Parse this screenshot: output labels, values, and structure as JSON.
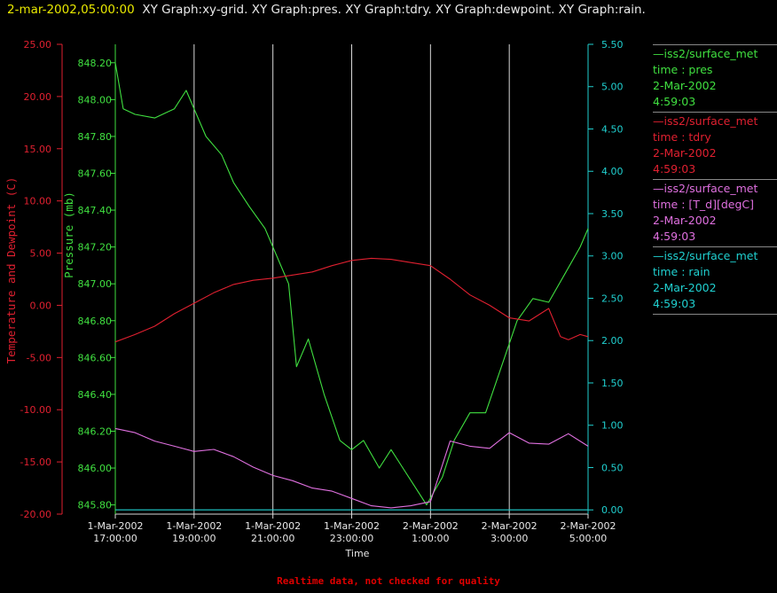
{
  "header": {
    "timestamp": "2-mar-2002,05:00:00",
    "title": "XY Graph:xy-grid.  XY Graph:pres.  XY Graph:tdry.  XY Graph:dewpoint.  XY Graph:rain."
  },
  "footer": {
    "note": "Realtime data, not checked for quality"
  },
  "legend": [
    {
      "lines": [
        "—iss2/surface_met",
        "time : pres",
        "2-Mar-2002",
        "4:59:03"
      ],
      "color": "#40e040"
    },
    {
      "lines": [
        "—iss2/surface_met",
        "time : tdry",
        "2-Mar-2002",
        "4:59:03"
      ],
      "color": "#e02030"
    },
    {
      "lines": [
        "—iss2/surface_met",
        "time : [T_d][degC]",
        "2-Mar-2002",
        "4:59:03"
      ],
      "color": "#e070e0"
    },
    {
      "lines": [
        "—iss2/surface_met",
        "time : rain",
        "2-Mar-2002",
        "4:59:03"
      ],
      "color": "#20d0d0"
    }
  ],
  "chart_data": {
    "type": "line",
    "xlabel": "Time",
    "x_ticks": [
      [
        "1-Mar-2002",
        "17:00:00"
      ],
      [
        "1-Mar-2002",
        "19:00:00"
      ],
      [
        "1-Mar-2002",
        "21:00:00"
      ],
      [
        "1-Mar-2002",
        "23:00:00"
      ],
      [
        "2-Mar-2002",
        "1:00:00"
      ],
      [
        "2-Mar-2002",
        "3:00:00"
      ],
      [
        "2-Mar-2002",
        "5:00:00"
      ]
    ],
    "x_range_hours": [
      0,
      12
    ],
    "vertical_grid": true,
    "left_axis": {
      "label": "Temperature and Dewpoint (C)",
      "range": [
        -20,
        25
      ],
      "ticks": [
        "25.00",
        "20.00",
        "15.00",
        "10.00",
        "5.00",
        "0.00",
        "-5.00",
        "-10.00",
        "-15.00",
        "-20.00"
      ],
      "color": "#e02030"
    },
    "pressure_axis": {
      "label": "Pressure (mb)",
      "range": [
        845.75,
        848.3
      ],
      "ticks": [
        "848.20",
        "848.00",
        "847.80",
        "847.60",
        "847.40",
        "847.20",
        "847.00",
        "846.80",
        "846.60",
        "846.40",
        "846.20",
        "846.00",
        "845.80"
      ],
      "color": "#40e040"
    },
    "right_axis": {
      "range": [
        -0.05,
        5.5
      ],
      "ticks": [
        "5.50",
        "5.00",
        "4.50",
        "4.00",
        "3.50",
        "3.00",
        "2.50",
        "2.00",
        "1.50",
        "1.00",
        "0.50",
        "0.00"
      ],
      "color": "#20d0d0"
    },
    "series": [
      {
        "name": "time : pres",
        "axis": "pressure",
        "color": "#40e040",
        "x": [
          0,
          0.2,
          0.5,
          1,
          1.5,
          1.8,
          2.0,
          2.3,
          2.7,
          3.0,
          3.4,
          3.8,
          4.1,
          4.4,
          4.6,
          4.9,
          5.3,
          5.7,
          6.0,
          6.3,
          6.7,
          7.0,
          7.3,
          7.6,
          7.9,
          8.3,
          8.6,
          9.0,
          9.4,
          9.8,
          10.2,
          10.6,
          11.0,
          11.4,
          11.8,
          12.0
        ],
        "y": [
          848.2,
          847.95,
          847.92,
          847.9,
          847.95,
          848.05,
          847.95,
          847.8,
          847.7,
          847.55,
          847.42,
          847.3,
          847.15,
          847.0,
          846.55,
          846.7,
          846.4,
          846.15,
          846.1,
          846.15,
          846.0,
          846.1,
          846.0,
          845.9,
          845.8,
          845.95,
          846.15,
          846.3,
          846.3,
          846.55,
          846.8,
          846.92,
          846.9,
          847.05,
          847.2,
          847.3
        ]
      },
      {
        "name": "time : tdry",
        "axis": "left",
        "color": "#e02030",
        "x": [
          0,
          0.5,
          1,
          1.5,
          2,
          2.5,
          3,
          3.5,
          4,
          4.5,
          5,
          5.5,
          6,
          6.5,
          7,
          7.5,
          8,
          8.5,
          9,
          9.5,
          10,
          10.5,
          11,
          11.3,
          11.5,
          11.8,
          12
        ],
        "y": [
          -3.5,
          -2.8,
          -2,
          -0.8,
          0.2,
          1.2,
          2,
          2.4,
          2.6,
          2.9,
          3.2,
          3.8,
          4.3,
          4.5,
          4.4,
          4.1,
          3.8,
          2.5,
          1,
          0,
          -1.2,
          -1.5,
          -0.3,
          -3,
          -3.3,
          -2.8,
          -3
        ]
      },
      {
        "name": "time : [T_d][degC]",
        "axis": "left",
        "color": "#e070e0",
        "x": [
          0,
          0.5,
          1,
          1.5,
          2,
          2.5,
          3,
          3.5,
          4,
          4.5,
          5,
          5.5,
          6,
          6.5,
          7,
          7.5,
          8,
          8.5,
          9,
          9.5,
          10,
          10.5,
          11,
          11.5,
          12
        ],
        "y": [
          -11.8,
          -12.2,
          -13,
          -13.5,
          -14,
          -13.8,
          -14.5,
          -15.5,
          -16.3,
          -16.8,
          -17.5,
          -17.8,
          -18.5,
          -19.2,
          -19.4,
          -19.2,
          -18.8,
          -13,
          -13.5,
          -13.7,
          -12.2,
          -13.2,
          -13.3,
          -12.3,
          -13.5
        ]
      },
      {
        "name": "time : rain",
        "axis": "right",
        "color": "#20d0d0",
        "x": [
          0,
          12
        ],
        "y": [
          0,
          0
        ]
      }
    ]
  }
}
